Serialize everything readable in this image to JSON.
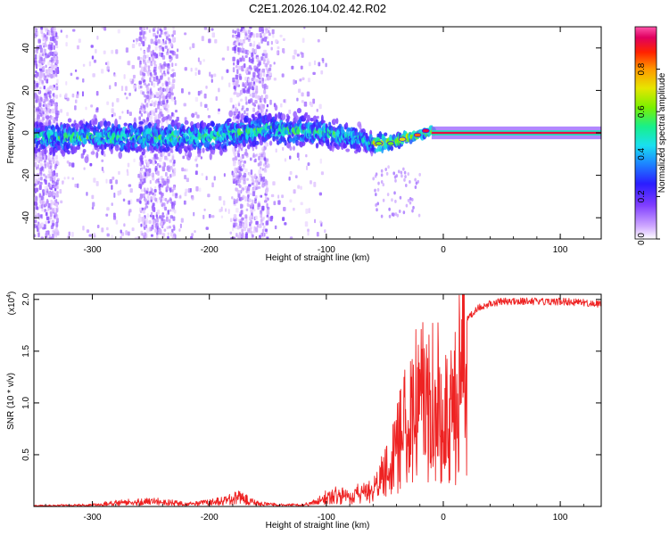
{
  "page": {
    "title": "C2E1.2026.104.02.42.R02"
  },
  "colors": {
    "snr_line": "#ee2222",
    "frame": "#000000",
    "colormap": [
      "#f4eaff",
      "#d9b8ff",
      "#a36bff",
      "#6a2bff",
      "#2a1dff",
      "#1c8bff",
      "#19e0f0",
      "#18f08a",
      "#7af000",
      "#e6e600",
      "#ff9900",
      "#ff2200",
      "#e00060",
      "#ff55aa"
    ]
  },
  "chart_data": [
    {
      "type": "heatmap",
      "name": "spectrogram",
      "xlabel": "Height of straight line (km)",
      "ylabel": "Frequency (Hz)",
      "xlim": [
        -350,
        135
      ],
      "ylim": [
        -50,
        50
      ],
      "x_ticks": [
        -300,
        -200,
        -100,
        0,
        100
      ],
      "x_tick_labels": [
        "-300",
        "-200",
        "-100",
        "0",
        "100"
      ],
      "y_ticks": [
        -40,
        -20,
        0,
        20,
        40
      ],
      "y_tick_labels": [
        "-40",
        "-20",
        "0",
        "20",
        "40"
      ],
      "colorbar": {
        "label": "Normalized spectral amplitude",
        "range": [
          0,
          1
        ],
        "ticks": [
          0.0,
          0.2,
          0.4,
          0.6,
          0.8
        ],
        "tick_labels": [
          "0.0",
          "0.2",
          "0.4",
          "0.6",
          "0.8"
        ]
      },
      "grid": false,
      "center_frequency_track": {
        "x": [
          -350,
          -300,
          -250,
          -200,
          -150,
          -100,
          -70,
          -60,
          -50,
          -40,
          -30,
          -20,
          -10,
          0,
          10,
          50,
          100,
          135
        ],
        "y": [
          -2,
          -2,
          -2,
          -2,
          2,
          0,
          -3,
          -5,
          -5,
          -4,
          -2,
          -1,
          1,
          0,
          0,
          0,
          0,
          0
        ]
      },
      "band_halfwidth_hz": {
        "x": [
          -350,
          -150,
          -100,
          -60,
          -40,
          -20,
          0,
          10,
          135
        ],
        "y": [
          8,
          8,
          7,
          5,
          3,
          2,
          1.5,
          1.2,
          1
        ]
      },
      "scatter_bands_km": [
        [
          -350,
          -330
        ],
        [
          -260,
          -230
        ],
        [
          -180,
          -150
        ]
      ]
    },
    {
      "type": "line",
      "name": "snr",
      "xlabel": "Height of straight line (km)",
      "ylabel": "SNR (10 * v/v)",
      "scale_label": "(x10",
      "scale_exponent": "4",
      "scale_suffix": ")",
      "xlim": [
        -350,
        135
      ],
      "ylim": [
        0,
        2.05
      ],
      "x_ticks": [
        -300,
        -200,
        -100,
        0,
        100
      ],
      "x_tick_labels": [
        "-300",
        "-200",
        "-100",
        "0",
        "100"
      ],
      "y_ticks": [
        0.5,
        1.0,
        1.5,
        2.0
      ],
      "y_tick_labels": [
        "0.5",
        "1.0",
        "1.5",
        "2.0"
      ],
      "grid": false,
      "series": [
        {
          "color": "#ee2222",
          "x": [
            -350,
            -300,
            -280,
            -260,
            -240,
            -220,
            -200,
            -185,
            -175,
            -160,
            -140,
            -120,
            -110,
            -100,
            -90,
            -80,
            -70,
            -60,
            -55,
            -50,
            -45,
            -40,
            -35,
            -30,
            -25,
            -20,
            -15,
            -10,
            -5,
            0,
            5,
            10,
            15,
            20,
            30,
            40,
            50,
            60,
            80,
            100,
            120,
            135
          ],
          "y": [
            0.01,
            0.02,
            0.05,
            0.06,
            0.06,
            0.03,
            0.05,
            0.08,
            0.12,
            0.04,
            0.02,
            0.02,
            0.05,
            0.12,
            0.15,
            0.12,
            0.18,
            0.2,
            0.3,
            0.45,
            0.55,
            0.75,
            0.9,
            1.1,
            1.25,
            1.35,
            1.35,
            1.4,
            1.4,
            1.15,
            1.1,
            1.3,
            1.6,
            1.8,
            1.92,
            1.96,
            1.98,
            1.98,
            1.98,
            1.98,
            1.97,
            1.95
          ]
        }
      ]
    }
  ]
}
